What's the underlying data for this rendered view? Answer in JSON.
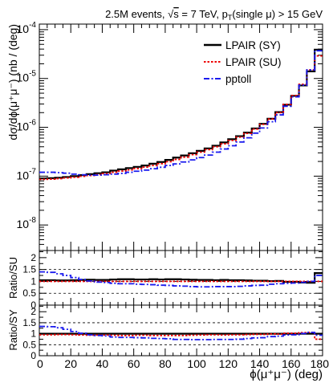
{
  "chart_data": [
    {
      "type": "line",
      "title_parts": {
        "prefix": "2.5M events, ",
        "root_sym": "√",
        "root_arg": "s",
        "mid": " = 7 TeV, p",
        "sub": "T",
        "suffix": "(single μ) > 15 GeV"
      },
      "ylabel": "dσ/dϕ(μ⁺μ⁻) (nb / (deg)",
      "yscale": "log",
      "ylim": [
        3e-09,
        0.00013
      ],
      "xlim": [
        0,
        180
      ],
      "y_ticks": [
        {
          "value": 1e-08,
          "base": "10",
          "exp": "-8"
        },
        {
          "value": 1e-07,
          "base": "10",
          "exp": "-7"
        },
        {
          "value": 1e-06,
          "base": "10",
          "exp": "-6"
        },
        {
          "value": 1e-05,
          "base": "10",
          "exp": "-5"
        },
        {
          "value": 0.0001,
          "base": "10",
          "exp": "-4"
        }
      ],
      "x_bin_edges": [
        0,
        5,
        10,
        15,
        20,
        25,
        30,
        35,
        40,
        45,
        50,
        55,
        60,
        65,
        70,
        75,
        80,
        85,
        90,
        95,
        100,
        105,
        110,
        115,
        120,
        125,
        130,
        135,
        140,
        145,
        150,
        155,
        160,
        165,
        170,
        175,
        180
      ],
      "legend_position": "top-right",
      "series": [
        {
          "name": "LPAIR (SY)",
          "color": "#000000",
          "dash": "solid",
          "values": [
            9e-08,
            9.1e-08,
            9.3e-08,
            9.6e-08,
            1e-07,
            1.05e-07,
            1.1e-07,
            1.15e-07,
            1.2e-07,
            1.3e-07,
            1.38e-07,
            1.46e-07,
            1.55e-07,
            1.65e-07,
            1.8e-07,
            1.95e-07,
            2.15e-07,
            2.4e-07,
            2.65e-07,
            2.95e-07,
            3.3e-07,
            3.7e-07,
            4.2e-07,
            4.9e-07,
            5.7e-07,
            6.6e-07,
            7.8e-07,
            9.5e-07,
            1.18e-06,
            1.5e-06,
            2.05e-06,
            2.9e-06,
            4.4e-06,
            7.2e-06,
            1.4e-05,
            3.9e-05
          ]
        },
        {
          "name": "LPAIR (SU)",
          "color": "#ee0000",
          "dash": "dotted",
          "values": [
            8.6e-08,
            8.7e-08,
            8.9e-08,
            9.2e-08,
            9.5e-08,
            9.9e-08,
            1.03e-07,
            1.08e-07,
            1.13e-07,
            1.2e-07,
            1.27e-07,
            1.34e-07,
            1.43e-07,
            1.53e-07,
            1.65e-07,
            1.8e-07,
            1.98e-07,
            2.2e-07,
            2.45e-07,
            2.75e-07,
            3.1e-07,
            3.5e-07,
            4e-07,
            4.6e-07,
            5.4e-07,
            6.3e-07,
            7.5e-07,
            9.2e-07,
            1.15e-06,
            1.48e-06,
            2e-06,
            2.95e-06,
            4.5e-06,
            7.6e-06,
            1.5e-05,
            2.9e-05
          ]
        },
        {
          "name": "pptoll",
          "color": "#1a1aee",
          "dash": "dashdot",
          "values": [
            1.2e-07,
            1.2e-07,
            1.18e-07,
            1.15e-07,
            1.1e-07,
            1.07e-07,
            1.05e-07,
            1.05e-07,
            1.07e-07,
            1.1e-07,
            1.14e-07,
            1.2e-07,
            1.26e-07,
            1.33e-07,
            1.42e-07,
            1.52e-07,
            1.65e-07,
            1.78e-07,
            1.95e-07,
            2.15e-07,
            2.4e-07,
            2.7e-07,
            3.1e-07,
            3.6e-07,
            4.2e-07,
            5e-07,
            6.1e-07,
            7.6e-07,
            9.7e-07,
            1.3e-06,
            1.8e-06,
            2.7e-06,
            4.2e-06,
            7.3e-06,
            1.5e-05,
            3.7e-05
          ]
        }
      ]
    },
    {
      "type": "line",
      "ylabel": "Ratio/SU",
      "ylim": [
        0,
        2.3
      ],
      "y_ticks": [
        "0",
        "0.5",
        "1",
        "1.5",
        "2"
      ],
      "dashed_lines": [
        0.5,
        1,
        1.5
      ],
      "series": [
        {
          "name": "SY/SU",
          "color": "#000000",
          "dash": "solid",
          "values": [
            1.05,
            1.05,
            1.04,
            1.04,
            1.05,
            1.06,
            1.07,
            1.06,
            1.06,
            1.08,
            1.09,
            1.09,
            1.08,
            1.08,
            1.09,
            1.08,
            1.09,
            1.09,
            1.08,
            1.07,
            1.06,
            1.06,
            1.05,
            1.06,
            1.05,
            1.05,
            1.04,
            1.03,
            1.03,
            1.01,
            1.02,
            0.98,
            0.98,
            0.95,
            0.94,
            1.35
          ]
        },
        {
          "name": "SU/SU",
          "color": "#ee0000",
          "dash": "dotted",
          "values": [
            1,
            1,
            1,
            1,
            1,
            1,
            1,
            1,
            1,
            1,
            1,
            1,
            1,
            1,
            1,
            1,
            1,
            1,
            1,
            1,
            1,
            1,
            1,
            1,
            1,
            1,
            1,
            1,
            1,
            1,
            1,
            1,
            1,
            1,
            1,
            1
          ]
        },
        {
          "name": "pptoll/SU",
          "color": "#1a1aee",
          "dash": "dashdot",
          "values": [
            1.4,
            1.38,
            1.32,
            1.25,
            1.16,
            1.08,
            1.02,
            0.97,
            0.95,
            0.92,
            0.9,
            0.9,
            0.88,
            0.87,
            0.86,
            0.84,
            0.83,
            0.81,
            0.8,
            0.78,
            0.77,
            0.77,
            0.78,
            0.78,
            0.78,
            0.79,
            0.81,
            0.83,
            0.84,
            0.88,
            0.9,
            0.92,
            0.93,
            0.96,
            1.0,
            1.25
          ]
        }
      ]
    },
    {
      "type": "line",
      "ylabel": "Ratio/SY",
      "xlabel": "ϕ(μ⁺μ⁻) (deg)",
      "ylim": [
        0,
        2.3
      ],
      "y_ticks": [
        "0",
        "0.5",
        "1",
        "1.5",
        "2"
      ],
      "x_ticks": [
        "0",
        "20",
        "40",
        "60",
        "80",
        "100",
        "120",
        "140",
        "160",
        "180"
      ],
      "dashed_lines": [
        0.5,
        1,
        1.5
      ],
      "series": [
        {
          "name": "SY/SY",
          "color": "#000000",
          "dash": "solid",
          "values": [
            1,
            1,
            1,
            1,
            1,
            1,
            1,
            1,
            1,
            1,
            1,
            1,
            1,
            1,
            1,
            1,
            1,
            1,
            1,
            1,
            1,
            1,
            1,
            1,
            1,
            1,
            1,
            1,
            1,
            1,
            1,
            1,
            1,
            1,
            1,
            1
          ]
        },
        {
          "name": "SU/SY",
          "color": "#ee0000",
          "dash": "dotted",
          "values": [
            0.95,
            0.95,
            0.96,
            0.96,
            0.95,
            0.94,
            0.93,
            0.94,
            0.94,
            0.93,
            0.92,
            0.92,
            0.93,
            0.93,
            0.92,
            0.92,
            0.92,
            0.92,
            0.92,
            0.93,
            0.94,
            0.95,
            0.95,
            0.94,
            0.95,
            0.95,
            0.96,
            0.97,
            0.97,
            0.99,
            0.98,
            1.02,
            1.02,
            1.05,
            1.06,
            0.75
          ]
        },
        {
          "name": "pptoll/SY",
          "color": "#1a1aee",
          "dash": "dashdot",
          "values": [
            1.33,
            1.32,
            1.27,
            1.2,
            1.1,
            1.02,
            0.95,
            0.92,
            0.9,
            0.85,
            0.83,
            0.83,
            0.82,
            0.81,
            0.79,
            0.78,
            0.77,
            0.74,
            0.74,
            0.73,
            0.73,
            0.73,
            0.74,
            0.74,
            0.74,
            0.75,
            0.78,
            0.81,
            0.82,
            0.87,
            0.89,
            0.94,
            0.95,
            1.01,
            1.06,
            0.93
          ]
        }
      ]
    }
  ]
}
